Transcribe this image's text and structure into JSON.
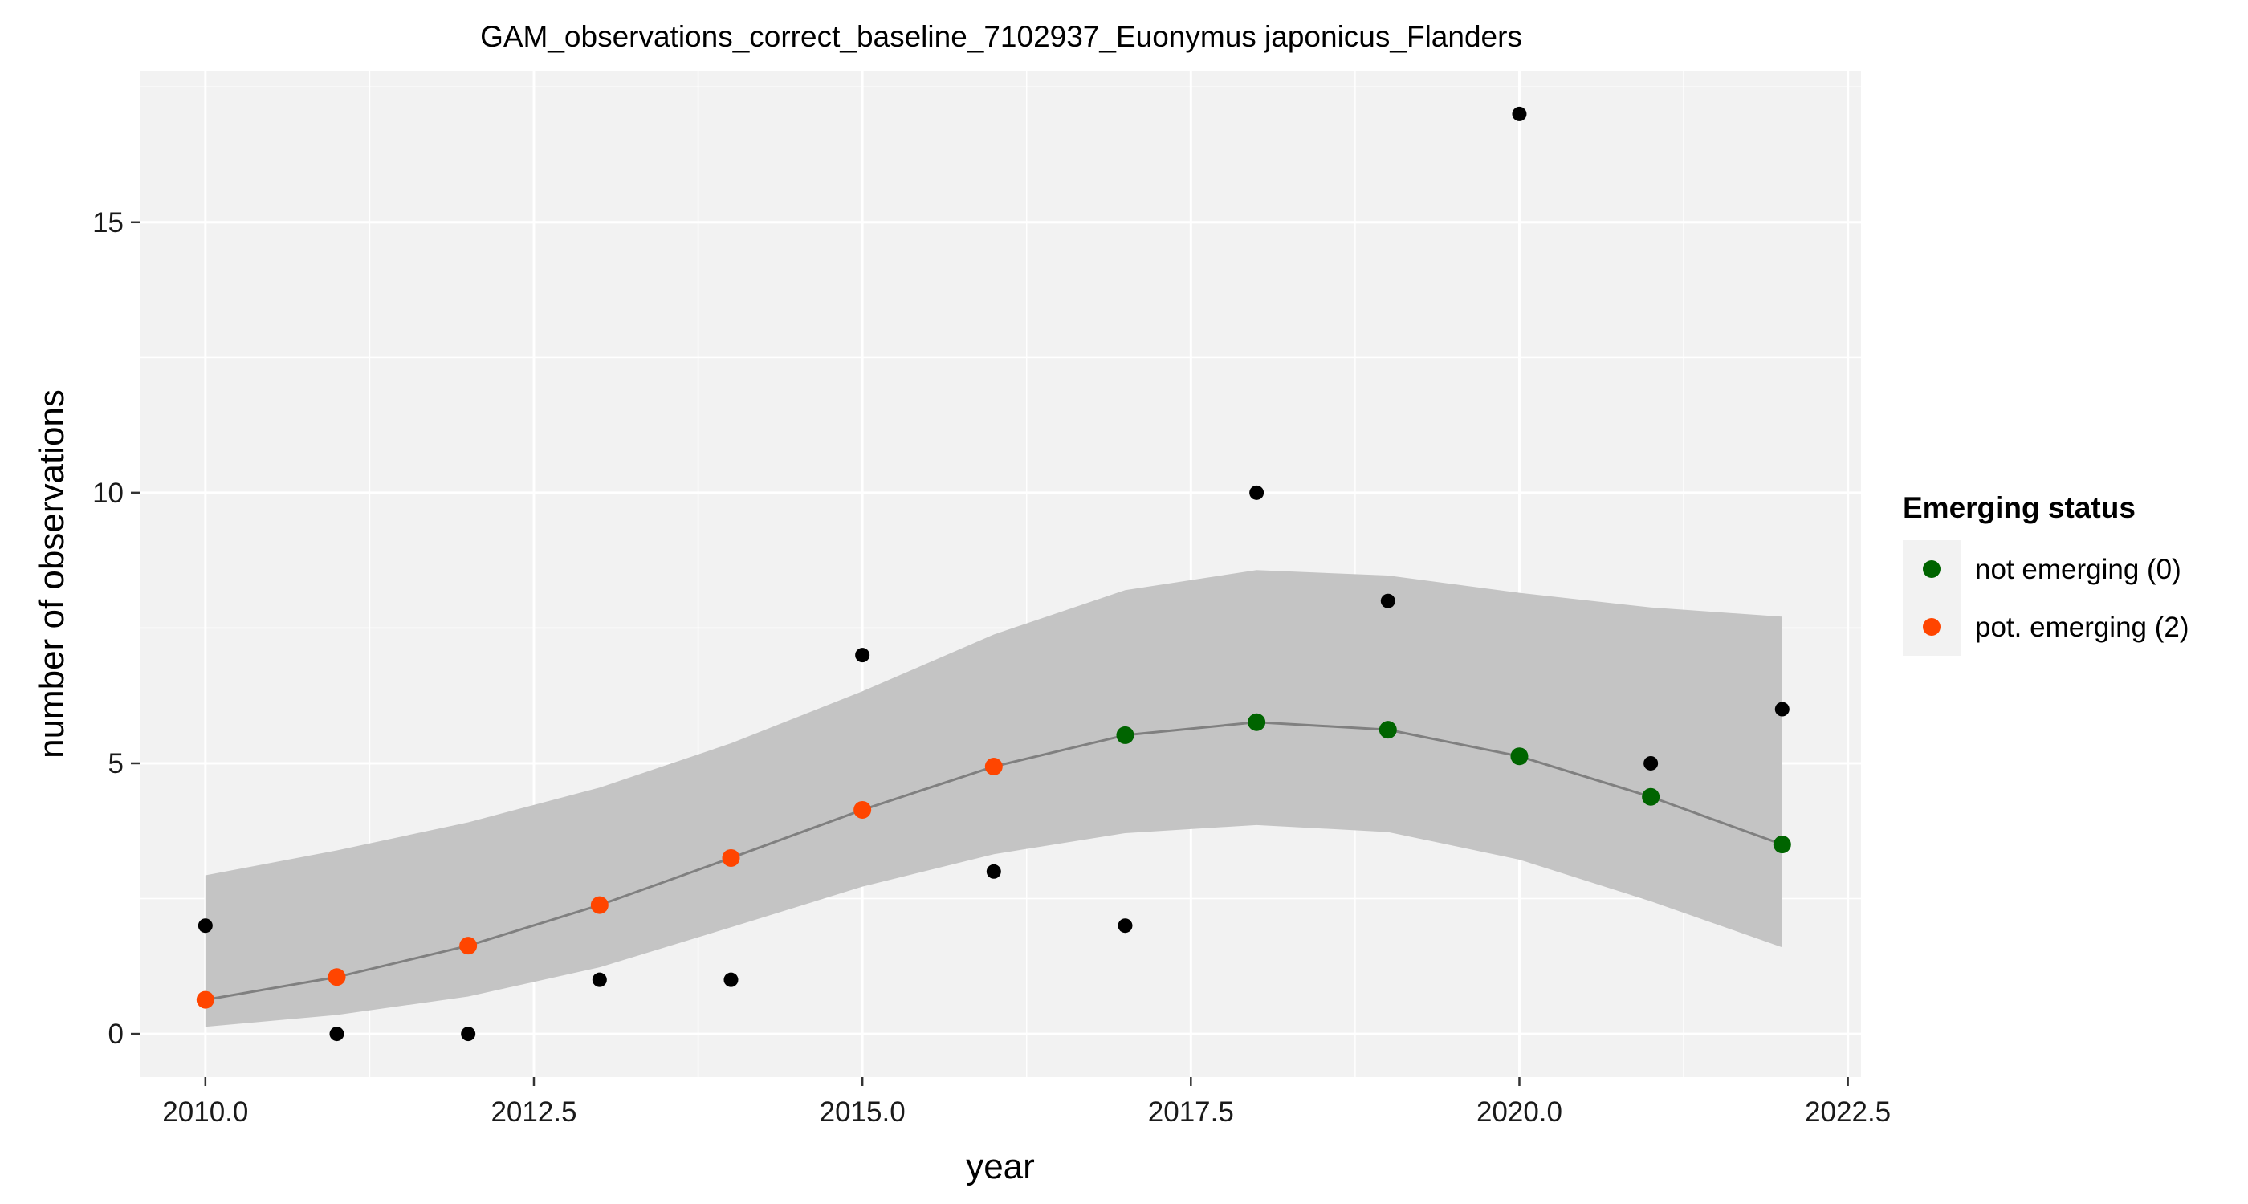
{
  "chart_data": {
    "type": "scatter",
    "title": "GAM_observations_correct_baseline_7102937_Euonymus japonicus_Flanders",
    "xlabel": "year",
    "ylabel": "number of observations",
    "xlim": [
      2009.5,
      2022.6
    ],
    "ylim": [
      -0.8,
      17.8
    ],
    "x_ticks": [
      2010.0,
      2012.5,
      2015.0,
      2017.5,
      2020.0,
      2022.5
    ],
    "x_tick_labels": [
      "2010.0",
      "2012.5",
      "2015.0",
      "2017.5",
      "2020.0",
      "2022.5"
    ],
    "y_ticks": [
      0,
      5,
      10,
      15
    ],
    "y_tick_labels": [
      "0",
      "5",
      "10",
      "15"
    ],
    "grid": true,
    "legend_position": "right",
    "legend_title": "Emerging status",
    "legend_entries": [
      {
        "label": "not emerging (0)",
        "color": "#006400"
      },
      {
        "label": "pot. emerging (2)",
        "color": "#FF4500"
      }
    ],
    "observed": {
      "x": [
        2010,
        2011,
        2012,
        2013,
        2014,
        2015,
        2016,
        2017,
        2018,
        2019,
        2020,
        2021,
        2022
      ],
      "y": [
        2,
        0,
        0,
        1,
        1,
        7,
        3,
        2,
        10,
        8,
        17,
        5,
        6
      ]
    },
    "fit": {
      "x": [
        2010,
        2011,
        2012,
        2013,
        2014,
        2015,
        2016,
        2017,
        2018,
        2019,
        2020,
        2021,
        2022
      ],
      "y": [
        0.63,
        1.05,
        1.63,
        2.38,
        3.25,
        4.14,
        4.94,
        5.52,
        5.76,
        5.62,
        5.13,
        4.38,
        3.5
      ],
      "lower": [
        0.13,
        0.35,
        0.69,
        1.23,
        1.97,
        2.72,
        3.32,
        3.71,
        3.86,
        3.73,
        3.22,
        2.45,
        1.6
      ],
      "upper": [
        2.93,
        3.39,
        3.91,
        4.55,
        5.37,
        6.33,
        7.38,
        8.2,
        8.57,
        8.47,
        8.15,
        7.88,
        7.71
      ],
      "status": [
        "pot. emerging (2)",
        "pot. emerging (2)",
        "pot. emerging (2)",
        "pot. emerging (2)",
        "pot. emerging (2)",
        "pot. emerging (2)",
        "pot. emerging (2)",
        "not emerging (0)",
        "not emerging (0)",
        "not emerging (0)",
        "not emerging (0)",
        "not emerging (0)",
        "not emerging (0)"
      ]
    },
    "colors": {
      "panel_background": "#F2F2F2",
      "grid": "#FFFFFF",
      "ribbon": "#C4C4C4",
      "fit_line": "#808080",
      "observed_point": "#000000",
      "not_emerging": "#006400",
      "pot_emerging": "#FF4500"
    }
  }
}
